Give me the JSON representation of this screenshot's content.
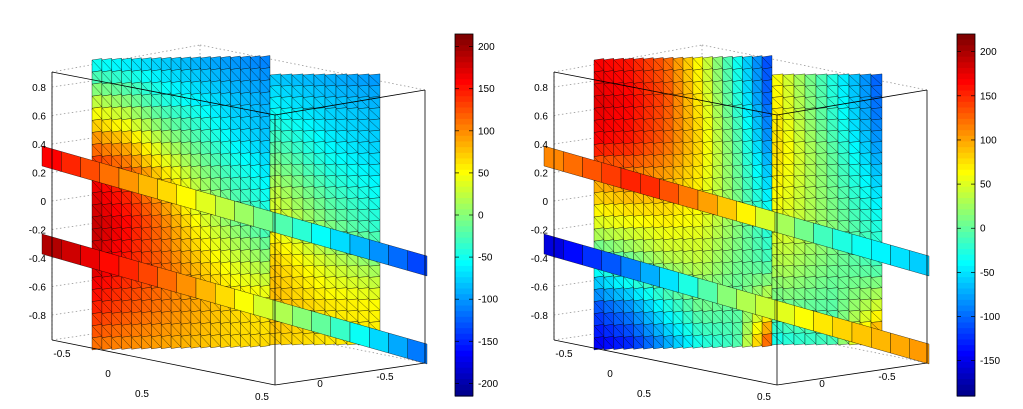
{
  "chart_data": [
    {
      "type": "3d-slice",
      "title": "",
      "axes": {
        "z_ticks": [
          "-0.8",
          "-0.6",
          "-0.4",
          "-0.2",
          "0",
          "0.2",
          "0.4",
          "0.6",
          "0.8"
        ],
        "x_ticks": [
          "-0.5",
          "0",
          "0.5"
        ],
        "y_ticks": [
          "0.5",
          "0",
          "-0.5"
        ]
      },
      "colorbar": {
        "colormap": "jet",
        "range": [
          -215,
          215
        ],
        "ticks": [
          "200",
          "150",
          "100",
          "50",
          "0",
          "-50",
          "-100",
          "-150",
          "-200"
        ]
      },
      "slices": {
        "x_planes": [
          -0.5,
          0,
          0.5
        ],
        "y_planes": [
          -0.5,
          0,
          0.5
        ],
        "z_planes": [
          -0.35,
          0.3
        ]
      },
      "field_values": {
        "front_plane": {
          "rows": 8,
          "cols": 6,
          "values": [
            [
              -60,
              -70,
              -80,
              -90,
              -100,
              -110
            ],
            [
              30,
              0,
              -40,
              -60,
              -80,
              -90
            ],
            [
              110,
              80,
              20,
              -20,
              -60,
              -80
            ],
            [
              170,
              140,
              80,
              20,
              -30,
              -60
            ],
            [
              190,
              160,
              110,
              50,
              0,
              -40
            ],
            [
              180,
              150,
              120,
              80,
              40,
              10
            ],
            [
              150,
              130,
              110,
              90,
              70,
              60
            ],
            [
              110,
              100,
              90,
              80,
              70,
              70
            ]
          ]
        },
        "z_top_plane": [
          170,
          90,
          20,
          -60,
          -140
        ],
        "z_bottom_plane": [
          200,
          140,
          60,
          -20,
          -120
        ]
      },
      "colors": {
        "frame": "#000000",
        "grid": "#999999",
        "mesh": "#000000"
      }
    },
    {
      "type": "3d-slice",
      "title": "",
      "axes": {
        "z_ticks": [
          "-0.8",
          "-0.6",
          "-0.4",
          "-0.2",
          "0",
          "0.2",
          "0.4",
          "0.6",
          "0.8"
        ],
        "x_ticks": [
          "-0.5",
          "0",
          "0.5"
        ],
        "y_ticks": [
          "0.5",
          "0",
          "-0.5"
        ]
      },
      "colorbar": {
        "colormap": "jet",
        "range": [
          -190,
          220
        ],
        "ticks": [
          "200",
          "150",
          "100",
          "50",
          "0",
          "-50",
          "-100",
          "-150"
        ]
      },
      "slices": {
        "x_planes": [
          -0.5,
          0,
          0.5
        ],
        "y_planes": [
          -0.5,
          0,
          0.5
        ],
        "z_planes": [
          -0.35,
          0.3
        ]
      },
      "field_values": {
        "front_plane": {
          "rows": 8,
          "cols": 6,
          "values": [
            [
              170,
              160,
              130,
              60,
              -30,
              -120
            ],
            [
              180,
              170,
              140,
              70,
              -20,
              -110
            ],
            [
              170,
              160,
              130,
              80,
              0,
              -90
            ],
            [
              100,
              110,
              100,
              70,
              10,
              -60
            ],
            [
              50,
              60,
              70,
              60,
              20,
              -30
            ],
            [
              -30,
              0,
              30,
              40,
              10,
              -10
            ],
            [
              -110,
              -80,
              -30,
              10,
              0,
              60
            ],
            [
              -150,
              -130,
              -80,
              -30,
              -10,
              160
            ]
          ]
        },
        "z_top_plane": [
          110,
          160,
          80,
          -20,
          -60
        ],
        "z_bottom_plane": [
          -160,
          -80,
          30,
          80,
          110
        ]
      },
      "colors": {
        "frame": "#000000",
        "grid": "#999999",
        "mesh": "#000000"
      }
    }
  ]
}
